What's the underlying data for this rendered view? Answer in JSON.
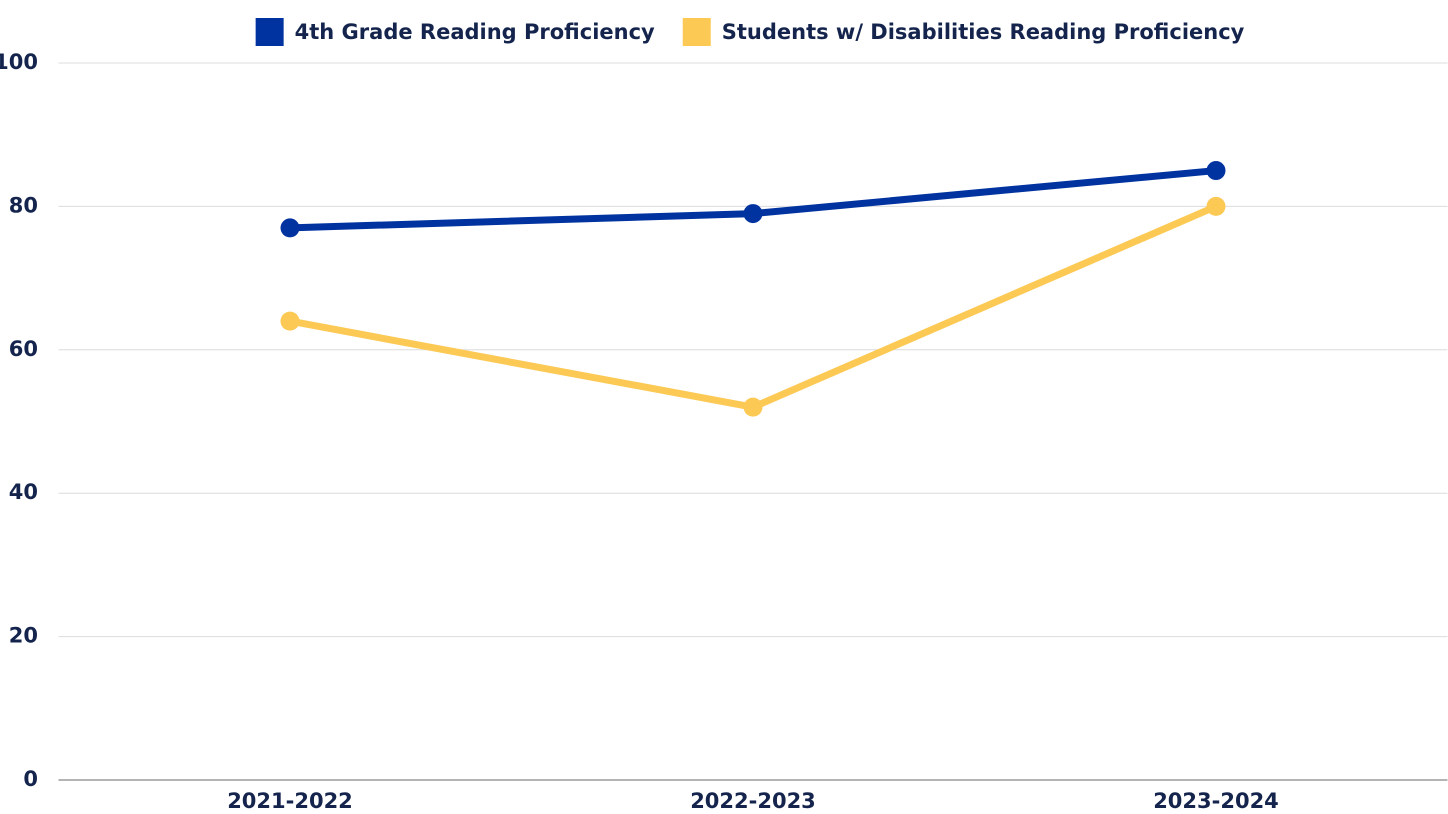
{
  "chart_data": {
    "type": "line",
    "categories": [
      "2021-2022",
      "2022-2023",
      "2023-2024"
    ],
    "series": [
      {
        "name": "4th Grade Reading Proficiency",
        "color": "#0033a0",
        "values": [
          77,
          79,
          85
        ]
      },
      {
        "name": "Students w/ Disabilities Reading Proficiency",
        "color": "#fcc954",
        "values": [
          64,
          52,
          80
        ]
      }
    ],
    "ylim": [
      0,
      100
    ],
    "yticks": [
      0,
      20,
      40,
      60,
      80,
      100
    ],
    "grid": true,
    "legend": "top"
  }
}
